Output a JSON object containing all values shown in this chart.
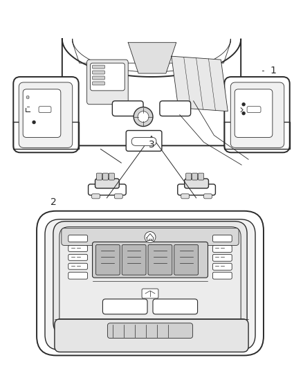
{
  "background_color": "#ffffff",
  "line_color": "#2a2a2a",
  "fig_width": 4.38,
  "fig_height": 5.33,
  "dpi": 100,
  "label_fontsize": 10,
  "label_2": [
    0.175,
    0.548
  ],
  "label_3": [
    0.5,
    0.368
  ],
  "label_1": [
    0.895,
    0.19
  ]
}
